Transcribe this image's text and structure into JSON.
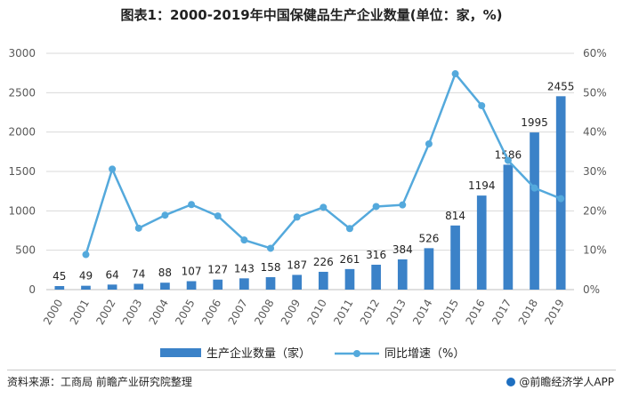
{
  "title": "图表1：2000-2019年中国保健品生产企业数量(单位：家，%)",
  "source": "资料来源：工商局 前瞻产业研究院整理",
  "brand": "@前瞻经济学人APP",
  "colors": {
    "bar": "#3b82c8",
    "line": "#54a9dc",
    "grid": "#d9d9d9",
    "axis": "#595959"
  },
  "chart_data": {
    "type": "bar",
    "title": "图表1：2000-2019年中国保健品生产企业数量(单位：家，%)",
    "categories": [
      "2000",
      "2001",
      "2002",
      "2003",
      "2004",
      "2005",
      "2006",
      "2007",
      "2008",
      "2009",
      "2010",
      "2011",
      "2012",
      "2013",
      "2014",
      "2015",
      "2016",
      "2017",
      "2018",
      "2019"
    ],
    "series": [
      {
        "name": "生产企业数量（家）",
        "type": "bar",
        "axis": "left",
        "values": [
          45,
          49,
          64,
          74,
          88,
          107,
          127,
          143,
          158,
          187,
          226,
          261,
          316,
          384,
          526,
          814,
          1194,
          1586,
          1995,
          2455
        ]
      },
      {
        "name": "同比增速（%）",
        "type": "line",
        "axis": "right",
        "values": [
          null,
          8.9,
          30.6,
          15.6,
          18.9,
          21.6,
          18.7,
          12.6,
          10.5,
          18.4,
          20.9,
          15.5,
          21.1,
          21.5,
          37.0,
          54.8,
          46.7,
          32.8,
          25.8,
          23.1
        ]
      }
    ],
    "left_axis": {
      "ylim": [
        0,
        3000
      ],
      "ticks": [
        "0",
        "500",
        "1000",
        "1500",
        "2000",
        "2500",
        "3000"
      ]
    },
    "right_axis": {
      "ylim": [
        0,
        60
      ],
      "ticks": [
        "0%",
        "10%",
        "20%",
        "30%",
        "40%",
        "50%",
        "60%"
      ]
    },
    "grid": true,
    "legend_position": "bottom"
  }
}
